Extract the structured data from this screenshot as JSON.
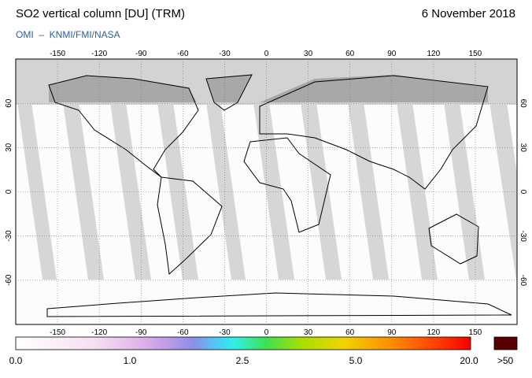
{
  "header": {
    "title": "SO2 vertical column [DU] (TRM)",
    "date": "6 November 2018",
    "credit": "OMI  –  KNMI/FMI/NASA"
  },
  "map": {
    "lon_ticks": [
      -150,
      -120,
      -90,
      -60,
      -30,
      0,
      30,
      60,
      90,
      120,
      150
    ],
    "lat_ticks": [
      60,
      30,
      0,
      -30,
      -60
    ]
  },
  "colorbar": {
    "labels": [
      "0.0",
      "1.0",
      "2.5",
      "5.0",
      "20.0",
      ">50"
    ]
  }
}
